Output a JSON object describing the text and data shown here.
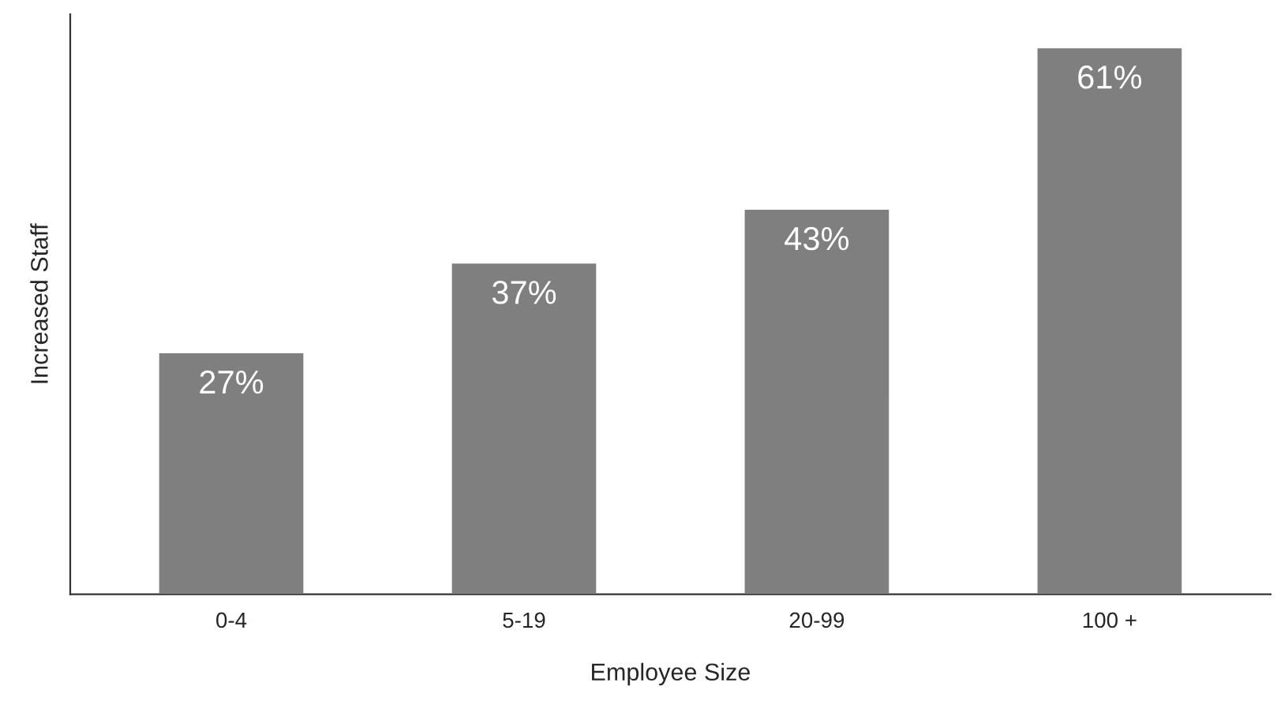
{
  "chart_data": {
    "type": "bar",
    "xlabel": "Employee Size",
    "ylabel": "Increased Staff",
    "categories": [
      "0-4",
      "5-19",
      "20-99",
      "100 +"
    ],
    "values": [
      27,
      37,
      43,
      61
    ],
    "value_labels": [
      "27%",
      "37%",
      "43%",
      "61%"
    ],
    "color": "#7f7f7f",
    "grid": false,
    "legend": false,
    "tick_labels": "x"
  }
}
